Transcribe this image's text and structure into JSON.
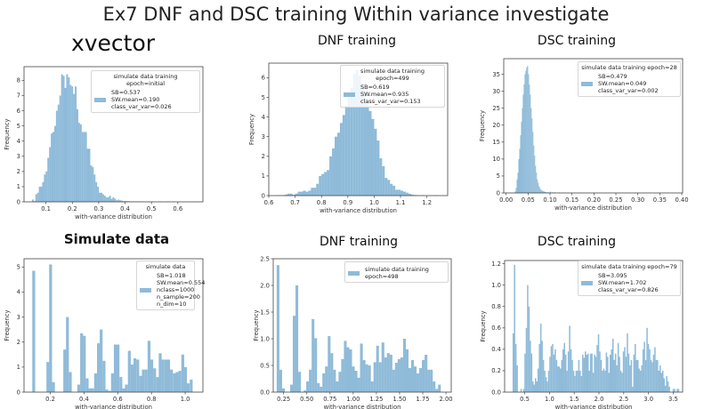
{
  "slide": {
    "title": "Ex7 DNF and DSC training Within variance investigate"
  },
  "panels": [
    {
      "title": "xvector"
    },
    {
      "title": "DNF training"
    },
    {
      "title": "DSC training"
    },
    {
      "title": "Simulate data"
    },
    {
      "title": "DNF training"
    },
    {
      "title": "DSC training"
    }
  ],
  "colors": {
    "bar": "#8fbbd9",
    "axis": "#444444"
  },
  "chart_data": [
    {
      "type": "bar",
      "subtype": "histogram",
      "xlabel": "with-variance distribution",
      "ylabel": "Frequency",
      "xlim": [
        0.017,
        0.695
      ],
      "ylim": [
        0,
        8.9
      ],
      "xticks": [
        "0.1",
        "0.2",
        "0.3",
        "0.4",
        "0.5",
        "0.6"
      ],
      "yticks": [
        "0",
        "1",
        "2",
        "3",
        "4",
        "5",
        "6",
        "7",
        "8"
      ],
      "legend": {
        "title": "simulate data training epoch=initial",
        "lines": [
          "SB=0.537",
          "SW.mean=0.190",
          "class_var_var=0.026"
        ],
        "placement": "upper right"
      },
      "bin_width": 0.0065,
      "bins": [
        [
          0.047,
          0.15
        ],
        [
          0.0535,
          0.05
        ],
        [
          0.06,
          0.5
        ],
        [
          0.0665,
          0.6
        ],
        [
          0.073,
          1.0
        ],
        [
          0.0795,
          1.0
        ],
        [
          0.086,
          1.3
        ],
        [
          0.0925,
          1.8
        ],
        [
          0.099,
          2.0
        ],
        [
          0.1055,
          2.9
        ],
        [
          0.112,
          3.6
        ],
        [
          0.1185,
          4.5
        ],
        [
          0.125,
          4.6
        ],
        [
          0.1315,
          5.0
        ],
        [
          0.138,
          6.0
        ],
        [
          0.1445,
          6.4
        ],
        [
          0.151,
          7.0
        ],
        [
          0.1575,
          8.4
        ],
        [
          0.164,
          8.3
        ],
        [
          0.1705,
          7.5
        ],
        [
          0.177,
          8.4
        ],
        [
          0.1835,
          8.2
        ],
        [
          0.19,
          7.7
        ],
        [
          0.1965,
          7.6
        ],
        [
          0.203,
          7.1
        ],
        [
          0.2095,
          7.6
        ],
        [
          0.216,
          6.1
        ],
        [
          0.2225,
          5.2
        ],
        [
          0.229,
          5.1
        ],
        [
          0.2355,
          4.6
        ],
        [
          0.242,
          4.6
        ],
        [
          0.2485,
          4.6
        ],
        [
          0.255,
          3.5
        ],
        [
          0.2615,
          3.5
        ],
        [
          0.268,
          2.4
        ],
        [
          0.2745,
          2.3
        ],
        [
          0.281,
          1.8
        ],
        [
          0.2875,
          1.3
        ],
        [
          0.294,
          1.0
        ],
        [
          0.3005,
          0.6
        ],
        [
          0.307,
          0.6
        ],
        [
          0.3135,
          0.5
        ],
        [
          0.32,
          0.4
        ],
        [
          0.3265,
          0.3
        ],
        [
          0.333,
          0.3
        ],
        [
          0.3395,
          0.4
        ],
        [
          0.346,
          0.2
        ],
        [
          0.3525,
          0.3
        ],
        [
          0.359,
          0.2
        ],
        [
          0.3655,
          0.1
        ],
        [
          0.372,
          0.15
        ],
        [
          0.3785,
          0.1
        ],
        [
          0.385,
          0.08
        ],
        [
          0.3915,
          0.05
        ],
        [
          0.398,
          0.05
        ],
        [
          0.4045,
          0.05
        ],
        [
          0.411,
          0.04
        ],
        [
          0.4175,
          0.03
        ],
        [
          0.424,
          0.03
        ],
        [
          0.43,
          0.02
        ],
        [
          0.443,
          0.03
        ],
        [
          0.45,
          0.02
        ],
        [
          0.463,
          0.02
        ],
        [
          0.469,
          0.02
        ],
        [
          0.482,
          0.02
        ],
        [
          0.489,
          0.02
        ],
        [
          0.502,
          0.02
        ],
        [
          0.53,
          0.02
        ],
        [
          0.56,
          0.02
        ],
        [
          0.66,
          0.02
        ]
      ]
    },
    {
      "type": "bar",
      "subtype": "histogram",
      "xlabel": "with-variance distribution",
      "ylabel": "Frequency",
      "xlim": [
        0.6,
        1.279
      ],
      "ylim": [
        0,
        6.74
      ],
      "xticks": [
        "0.6",
        "0.7",
        "0.8",
        "0.9",
        "1.0",
        "1.1",
        "1.2"
      ],
      "yticks": [
        "0",
        "1",
        "2",
        "3",
        "4",
        "5",
        "6"
      ],
      "legend": {
        "title": "simulate data training epoch=499",
        "lines": [
          "SB=0.619",
          "SW.mean=0.935",
          "class_var_var=0.153"
        ],
        "placement": "upper right"
      },
      "bin_width": 0.01,
      "bins": [
        [
          0.63,
          0.02
        ],
        [
          0.64,
          0.02
        ],
        [
          0.65,
          0.02
        ],
        [
          0.66,
          0.05
        ],
        [
          0.67,
          0.1
        ],
        [
          0.68,
          0.1
        ],
        [
          0.69,
          0.05
        ],
        [
          0.7,
          0.1
        ],
        [
          0.71,
          0.2
        ],
        [
          0.72,
          0.2
        ],
        [
          0.73,
          0.25
        ],
        [
          0.74,
          0.2
        ],
        [
          0.75,
          0.25
        ],
        [
          0.76,
          0.4
        ],
        [
          0.77,
          0.4
        ],
        [
          0.78,
          0.6
        ],
        [
          0.79,
          1.0
        ],
        [
          0.8,
          1.1
        ],
        [
          0.81,
          1.2
        ],
        [
          0.82,
          1.3
        ],
        [
          0.83,
          2.0
        ],
        [
          0.84,
          2.4
        ],
        [
          0.85,
          3.0
        ],
        [
          0.86,
          3.2
        ],
        [
          0.87,
          3.7
        ],
        [
          0.88,
          4.1
        ],
        [
          0.89,
          4.6
        ],
        [
          0.9,
          5.0
        ],
        [
          0.91,
          5.5
        ],
        [
          0.92,
          6.2
        ],
        [
          0.93,
          6.4
        ],
        [
          0.94,
          6.1
        ],
        [
          0.95,
          5.7
        ],
        [
          0.96,
          5.3
        ],
        [
          0.97,
          4.8
        ],
        [
          0.98,
          4.3
        ],
        [
          0.99,
          3.9
        ],
        [
          1.0,
          3.4
        ],
        [
          1.01,
          2.8
        ],
        [
          1.02,
          1.9
        ],
        [
          1.03,
          1.5
        ],
        [
          1.04,
          0.9
        ],
        [
          1.05,
          0.8
        ],
        [
          1.06,
          0.6
        ],
        [
          1.07,
          0.5
        ],
        [
          1.08,
          0.3
        ],
        [
          1.09,
          0.3
        ],
        [
          1.1,
          0.25
        ],
        [
          1.11,
          0.2
        ],
        [
          1.12,
          0.15
        ],
        [
          1.13,
          0.1
        ],
        [
          1.14,
          0.05
        ],
        [
          1.15,
          0.03
        ],
        [
          1.16,
          0.02
        ],
        [
          1.18,
          0.02
        ],
        [
          1.2,
          0.01
        ],
        [
          1.23,
          0.02
        ]
      ]
    },
    {
      "type": "bar",
      "subtype": "histogram",
      "xlabel": "with-variance distribution",
      "ylabel": "Frequency",
      "xlim": [
        -0.0054,
        0.402
      ],
      "ylim": [
        0,
        39.6
      ],
      "xticks": [
        "0.00",
        "0.05",
        "0.10",
        "0.15",
        "0.20",
        "0.25",
        "0.30",
        "0.35",
        "0.40"
      ],
      "yticks": [
        "0",
        "5",
        "10",
        "15",
        "20",
        "25",
        "30",
        "35"
      ],
      "legend": {
        "title": "simulate data training epoch=28",
        "lines": [
          "SB=0.479",
          "SW.mean=0.049",
          "class_var_var=0.002"
        ],
        "placement": "upper right"
      },
      "bin_width": 0.002,
      "bins": [
        [
          0.02,
          0.5
        ],
        [
          0.022,
          1.5
        ],
        [
          0.024,
          4
        ],
        [
          0.026,
          6
        ],
        [
          0.028,
          10
        ],
        [
          0.03,
          13
        ],
        [
          0.032,
          17
        ],
        [
          0.034,
          21
        ],
        [
          0.036,
          25
        ],
        [
          0.038,
          29
        ],
        [
          0.04,
          32
        ],
        [
          0.042,
          35
        ],
        [
          0.044,
          36
        ],
        [
          0.046,
          37
        ],
        [
          0.048,
          37.5
        ],
        [
          0.05,
          35
        ],
        [
          0.052,
          32
        ],
        [
          0.054,
          29
        ],
        [
          0.056,
          25
        ],
        [
          0.058,
          22
        ],
        [
          0.06,
          18
        ],
        [
          0.062,
          14
        ],
        [
          0.064,
          11
        ],
        [
          0.066,
          8
        ],
        [
          0.068,
          6
        ],
        [
          0.07,
          4
        ],
        [
          0.072,
          3
        ],
        [
          0.074,
          2
        ],
        [
          0.076,
          1.5
        ],
        [
          0.078,
          1
        ],
        [
          0.08,
          0.8
        ],
        [
          0.082,
          0.6
        ],
        [
          0.084,
          0.5
        ],
        [
          0.086,
          0.4
        ],
        [
          0.088,
          0.3
        ],
        [
          0.09,
          0.3
        ],
        [
          0.095,
          0.3
        ],
        [
          0.1,
          0.4
        ],
        [
          0.105,
          0.2
        ],
        [
          0.11,
          0.2
        ],
        [
          0.12,
          0.15
        ],
        [
          0.13,
          0.1
        ],
        [
          0.14,
          0.1
        ],
        [
          0.15,
          0.1
        ],
        [
          0.17,
          0.05
        ],
        [
          0.2,
          0.05
        ],
        [
          0.25,
          0.05
        ],
        [
          0.3,
          0.03
        ],
        [
          0.38,
          0.03
        ]
      ]
    },
    {
      "type": "bar",
      "subtype": "histogram",
      "xlabel": "with-variance distribution",
      "ylabel": "Frequency",
      "xlim": [
        0.044,
        1.105
      ],
      "ylim": [
        0,
        5.33
      ],
      "xticks": [
        "0.2",
        "0.4",
        "0.6",
        "0.8",
        "1.0"
      ],
      "yticks": [
        "0",
        "1",
        "2",
        "3",
        "4",
        "5"
      ],
      "legend": {
        "title": "simulate data",
        "lines": [
          "SB=1.018",
          "SW.mean=0.554",
          "nclass=1000",
          "n_sample=200",
          "n_dim=10"
        ],
        "placement": "upper right"
      },
      "bin_width": 0.0167,
      "bins": [
        [
          0.093,
          4.85
        ],
        [
          0.177,
          1.2
        ],
        [
          0.193,
          5.1
        ],
        [
          0.21,
          0.4
        ],
        [
          0.277,
          1.7
        ],
        [
          0.293,
          3.0
        ],
        [
          0.31,
          0.8
        ],
        [
          0.36,
          0.3
        ],
        [
          0.377,
          2.35
        ],
        [
          0.393,
          2.25
        ],
        [
          0.41,
          0.55
        ],
        [
          0.427,
          0.15
        ],
        [
          0.443,
          0.15
        ],
        [
          0.46,
          0.75
        ],
        [
          0.477,
          1.95
        ],
        [
          0.493,
          2.5
        ],
        [
          0.51,
          1.25
        ],
        [
          0.527,
          0.1
        ],
        [
          0.543,
          0.05
        ],
        [
          0.56,
          0.75
        ],
        [
          0.577,
          1.9
        ],
        [
          0.593,
          1.9
        ],
        [
          0.61,
          0.6
        ],
        [
          0.627,
          0.15
        ],
        [
          0.643,
          0.3
        ],
        [
          0.66,
          1.65
        ],
        [
          0.677,
          1.1
        ],
        [
          0.693,
          1.35
        ],
        [
          0.71,
          1.3
        ],
        [
          0.727,
          0.65
        ],
        [
          0.743,
          0.9
        ],
        [
          0.76,
          0.9
        ],
        [
          0.777,
          2.05
        ],
        [
          0.793,
          1.3
        ],
        [
          0.81,
          0.95
        ],
        [
          0.827,
          0.6
        ],
        [
          0.843,
          1.55
        ],
        [
          0.86,
          1.3
        ],
        [
          0.877,
          1.3
        ],
        [
          0.893,
          1.3
        ],
        [
          0.91,
          0.9
        ],
        [
          0.927,
          0.75
        ],
        [
          0.943,
          0.8
        ],
        [
          0.96,
          0.85
        ],
        [
          0.977,
          1.5
        ],
        [
          0.993,
          1.0
        ],
        [
          1.01,
          0.35
        ],
        [
          1.027,
          0.5
        ]
      ]
    },
    {
      "type": "bar",
      "subtype": "histogram",
      "xlabel": "with-variance distribution",
      "ylabel": "Frequency",
      "xlim": [
        0.138,
        2.057
      ],
      "ylim": [
        0,
        2.5
      ],
      "xticks": [
        "0.25",
        "0.50",
        "0.75",
        "1.00",
        "1.25",
        "1.50",
        "1.75",
        "2.00"
      ],
      "yticks": [
        "0.0",
        "0.5",
        "1.0",
        "1.5",
        "2.0",
        "2.5"
      ],
      "legend": {
        "title": "",
        "lines": [
          "simulate data training epoch=498"
        ],
        "placement": "upper right"
      },
      "bin_start": 0.175,
      "bin_width": 0.029,
      "values": [
        2.38,
        0.42,
        0.07,
        0,
        0,
        0.14,
        1.43,
        2.0,
        0.38,
        0,
        0.03,
        0.2,
        0.42,
        1.37,
        1.01,
        0.17,
        0.1,
        0.35,
        0.48,
        1.05,
        0.73,
        0.42,
        0.2,
        0.38,
        0.62,
        0.96,
        0.84,
        0.8,
        0.48,
        0.4,
        0.27,
        0.91,
        0.6,
        0.52,
        0.5,
        0.2,
        0.56,
        0.87,
        0.56,
        0.93,
        0.65,
        0.73,
        0.7,
        0.42,
        0.55,
        0.62,
        0.65,
        1.0,
        0.8,
        0.45,
        0.6,
        0.48,
        0.35,
        0.45,
        0.6,
        0.7,
        0.42,
        0.42,
        0.2,
        0.06,
        0.14
      ]
    },
    {
      "type": "bar",
      "subtype": "histogram",
      "xlabel": "with-variance distribution",
      "ylabel": "Frequency",
      "xlim": [
        0.094,
        3.69
      ],
      "ylim": [
        0,
        1.23
      ],
      "xticks": [
        "0.5",
        "1.0",
        "1.5",
        "2.0",
        "2.5",
        "3.0",
        "3.5"
      ],
      "yticks": [
        "0.0",
        "0.2",
        "0.4",
        "0.6",
        "0.8",
        "1.0",
        "1.2"
      ],
      "legend": {
        "title": "simulate data training epoch=79",
        "lines": [
          "SB=3.095",
          "SW.mean=1.702",
          "class_var_var=0.826"
        ],
        "placement": "upper right"
      },
      "bin_start": 0.255,
      "bin_width": 0.0265,
      "values": [
        0.55,
        1.19,
        0.45,
        0.25,
        0,
        0,
        0.03,
        0,
        0.03,
        0.36,
        0.6,
        1.0,
        0.8,
        0.48,
        0.36,
        0.1,
        0.07,
        0.13,
        0.1,
        0.22,
        0.45,
        0.64,
        0.48,
        0.3,
        0.2,
        0.14,
        0.1,
        0.2,
        0.33,
        0.43,
        0.45,
        0.35,
        0.4,
        0.3,
        0.24,
        0.24,
        0.22,
        0.3,
        0.4,
        0.46,
        0.35,
        0.2,
        0.38,
        0.62,
        0.4,
        0.3,
        0.2,
        0.15,
        0.2,
        0.2,
        0.3,
        0.2,
        0.15,
        0.35,
        0.32,
        0.38,
        0.35,
        0.36,
        0.2,
        0.36,
        0.36,
        0.18,
        0.35,
        0.33,
        0.44,
        0.54,
        0.38,
        0.3,
        0.2,
        0.22,
        0.2,
        0.37,
        0.33,
        0.18,
        0.35,
        0.4,
        0.5,
        0.3,
        0.36,
        0.25,
        0.46,
        0.33,
        0.2,
        0.18,
        0.38,
        0.42,
        0.33,
        0.55,
        0.36,
        0.25,
        0.3,
        0.05,
        0.35,
        0.45,
        0.3,
        0.3,
        0.22,
        0.2,
        0.25,
        0.4,
        0.47,
        0.3,
        0.6,
        0.45,
        0.4,
        0.3,
        0.28,
        0.35,
        0.42,
        0.3,
        0.3,
        0.2,
        0.25,
        0.18,
        0.2,
        0.13,
        0.06,
        0.15,
        0.1,
        0.05,
        0,
        0,
        0.03,
        0.03,
        0,
        0.03,
        0.03
      ]
    }
  ]
}
